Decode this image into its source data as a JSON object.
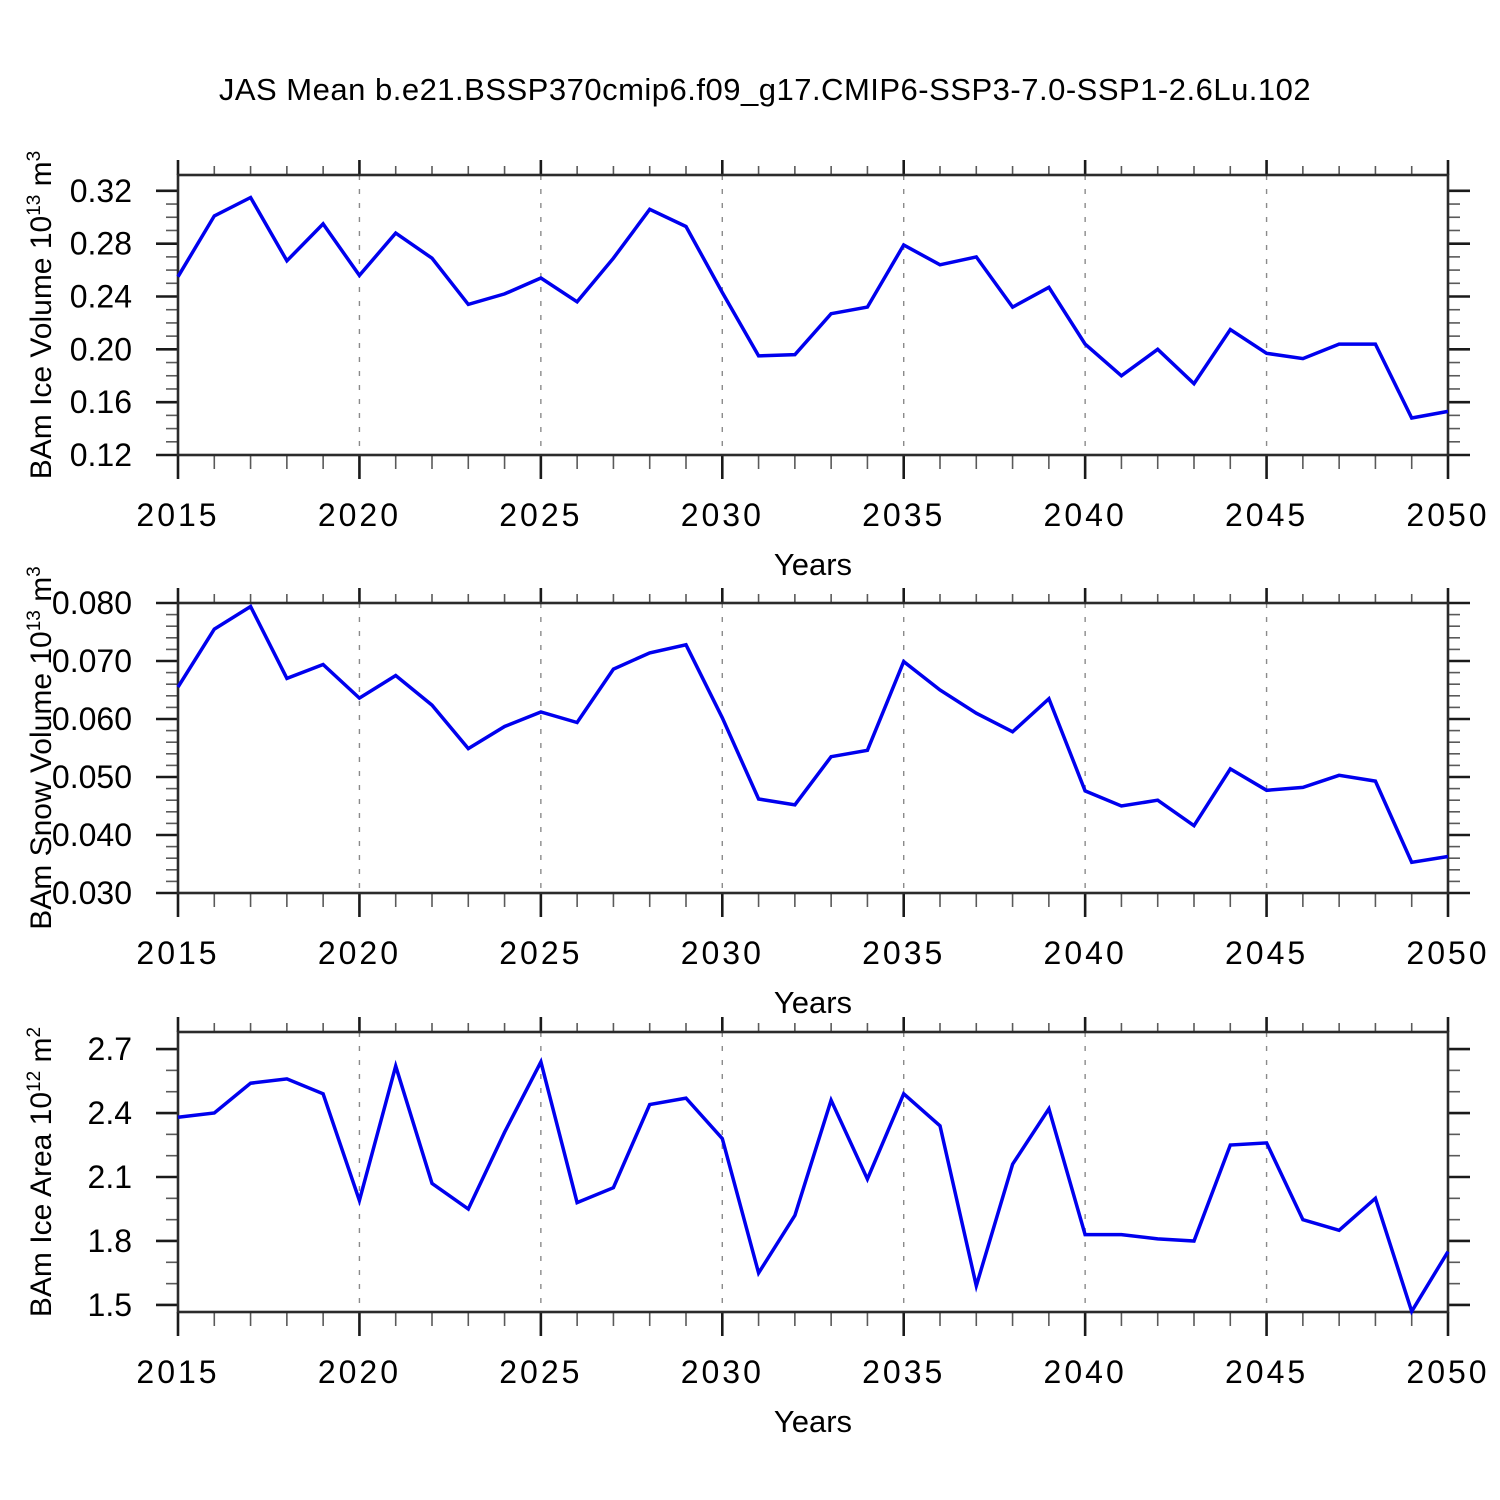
{
  "title": "JAS Mean b.e21.BSSP370cmip6.f09_g17.CMIP6-SSP3-7.0-SSP1-2.6Lu.102",
  "colors": {
    "line": "#0000EE",
    "grid": "#8A8A8A",
    "spine": "#2B2B2B",
    "major_tick": "#1A1A1A",
    "minor_tick": "#5A5A5A",
    "background": "#FFFFFF",
    "text": "#000000"
  },
  "chart_data": {
    "type": "line",
    "x_label": "Years",
    "grid": "vertical-dashed",
    "grid_lines_at": [
      2020,
      2025,
      2030,
      2035,
      2040,
      2045
    ],
    "x_range": [
      2015,
      2050
    ],
    "x_major_ticks": [
      2015,
      2020,
      2025,
      2030,
      2035,
      2040,
      2045,
      2050
    ],
    "x_tick_labels": [
      "2015",
      "2020",
      "2025",
      "2030",
      "2035",
      "2040",
      "2045",
      "2050"
    ],
    "x_minor_step": 1,
    "years": [
      2015,
      2016,
      2017,
      2018,
      2019,
      2020,
      2021,
      2022,
      2023,
      2024,
      2025,
      2026,
      2027,
      2028,
      2029,
      2030,
      2031,
      2032,
      2033,
      2034,
      2035,
      2036,
      2037,
      2038,
      2039,
      2040,
      2041,
      2042,
      2043,
      2044,
      2045,
      2046,
      2047,
      2048,
      2049,
      2050
    ],
    "panels": [
      {
        "name": "ice_volume",
        "y_label": "BAm Ice Volume 10^13 m^3",
        "y_label_parts": [
          {
            "text": "BAm Ice Volume 10"
          },
          {
            "text": "13",
            "sup": true
          },
          {
            "text": " m"
          },
          {
            "text": "3",
            "sup": true
          }
        ],
        "ylim": [
          0.12,
          0.332
        ],
        "y_major_ticks": [
          0.12,
          0.16,
          0.2,
          0.24,
          0.28,
          0.32
        ],
        "y_tick_labels": [
          "0.12",
          "0.16",
          "0.20",
          "0.24",
          "0.28",
          "0.32"
        ],
        "y_minor_step": 0.01,
        "values": [
          0.255,
          0.301,
          0.315,
          0.267,
          0.295,
          0.256,
          0.288,
          0.269,
          0.234,
          0.242,
          0.254,
          0.236,
          0.269,
          0.306,
          0.293,
          0.243,
          0.195,
          0.196,
          0.227,
          0.232,
          0.279,
          0.264,
          0.27,
          0.232,
          0.247,
          0.204,
          0.18,
          0.2,
          0.174,
          0.215,
          0.197,
          0.193,
          0.204,
          0.204,
          0.148,
          0.153
        ]
      },
      {
        "name": "snow_volume",
        "y_label": "BAm Snow Volume 10^13 m^3",
        "y_label_parts": [
          {
            "text": "BAm Snow Volume 10"
          },
          {
            "text": "13",
            "sup": true
          },
          {
            "text": " m"
          },
          {
            "text": "3",
            "sup": true
          }
        ],
        "ylim": [
          0.03,
          0.08
        ],
        "y_major_ticks": [
          0.03,
          0.04,
          0.05,
          0.06,
          0.07,
          0.08
        ],
        "y_tick_labels": [
          "0.030",
          "0.040",
          "0.050",
          "0.060",
          "0.070",
          "0.080"
        ],
        "y_minor_step": 0.002,
        "values": [
          0.0655,
          0.0755,
          0.0794,
          0.067,
          0.0694,
          0.0636,
          0.0675,
          0.0624,
          0.0549,
          0.0587,
          0.0612,
          0.0594,
          0.0686,
          0.0714,
          0.0728,
          0.0602,
          0.0462,
          0.0452,
          0.0535,
          0.0546,
          0.0699,
          0.065,
          0.061,
          0.0578,
          0.0635,
          0.0476,
          0.045,
          0.046,
          0.0416,
          0.0514,
          0.0477,
          0.0482,
          0.0503,
          0.0493,
          0.0353,
          0.0363
        ]
      },
      {
        "name": "ice_area",
        "y_label": "BAm Ice Area 10^12 m^2",
        "y_label_parts": [
          {
            "text": "BAm Ice Area 10"
          },
          {
            "text": "12",
            "sup": true
          },
          {
            "text": " m"
          },
          {
            "text": "2",
            "sup": true
          }
        ],
        "ylim": [
          1.467,
          2.78
        ],
        "y_major_ticks": [
          1.5,
          1.8,
          2.1,
          2.4,
          2.7
        ],
        "y_tick_labels": [
          "1.5",
          "1.8",
          "2.1",
          "2.4",
          "2.7"
        ],
        "y_minor_step": 0.1,
        "values": [
          2.38,
          2.4,
          2.54,
          2.56,
          2.49,
          1.99,
          2.62,
          2.07,
          1.95,
          2.31,
          2.64,
          1.98,
          2.05,
          2.44,
          2.47,
          2.28,
          1.65,
          1.92,
          2.46,
          2.09,
          2.49,
          2.34,
          1.59,
          2.16,
          2.42,
          1.83,
          1.83,
          1.81,
          1.8,
          2.25,
          2.26,
          1.9,
          1.85,
          2.0,
          1.47,
          1.75
        ]
      }
    ]
  }
}
